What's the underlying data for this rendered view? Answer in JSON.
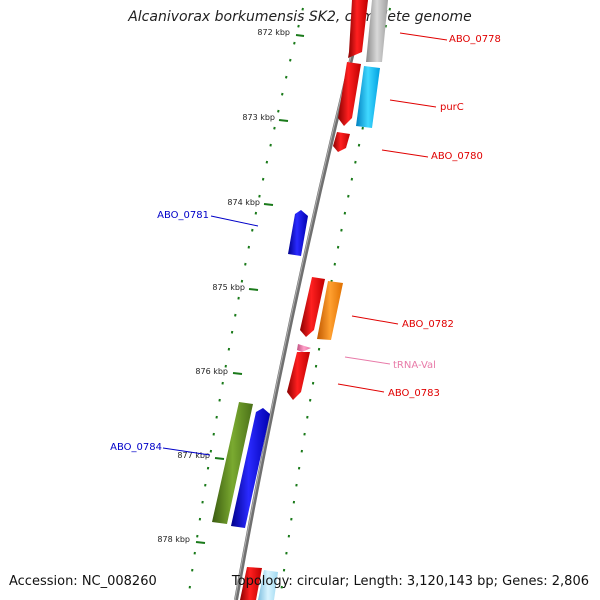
{
  "title": "Alcanivorax borkumensis SK2, complete genome",
  "footer": {
    "accession": "Accession: NC_008260",
    "summary": "Topology: circular; Length: 3,120,143 bp; Genes: 2,806"
  },
  "ticks": [
    "872 kbp",
    "873 kbp",
    "874 kbp",
    "875 kbp",
    "876 kbp",
    "877 kbp",
    "878 kbp"
  ],
  "genes": [
    {
      "label": "ABO_0778",
      "color": "#e00000",
      "strand": "+"
    },
    {
      "label": "purC",
      "color": "#e00000",
      "strand": "+"
    },
    {
      "label": "ABO_0780",
      "color": "#e00000",
      "strand": "+"
    },
    {
      "label": "ABO_0781",
      "color": "#0000c8",
      "strand": "-"
    },
    {
      "label": "ABO_0782",
      "color": "#e00000",
      "strand": "+"
    },
    {
      "label": "tRNA-Val",
      "color": "#e87aa8",
      "strand": "+"
    },
    {
      "label": "ABO_0783",
      "color": "#e00000",
      "strand": "+"
    },
    {
      "label": "ABO_0784",
      "color": "#0000c8",
      "strand": "-"
    }
  ],
  "colors": {
    "backbone": "#808080",
    "tick_dots": "#1a7a1a",
    "cds_plus": "#ff0000",
    "cds_minus": "#0000ff",
    "cog_gray": "#b0b0b0",
    "cog_cyan": "#00b4f0",
    "cog_orange": "#ff8800",
    "cog_olive": "#5a8a20"
  }
}
